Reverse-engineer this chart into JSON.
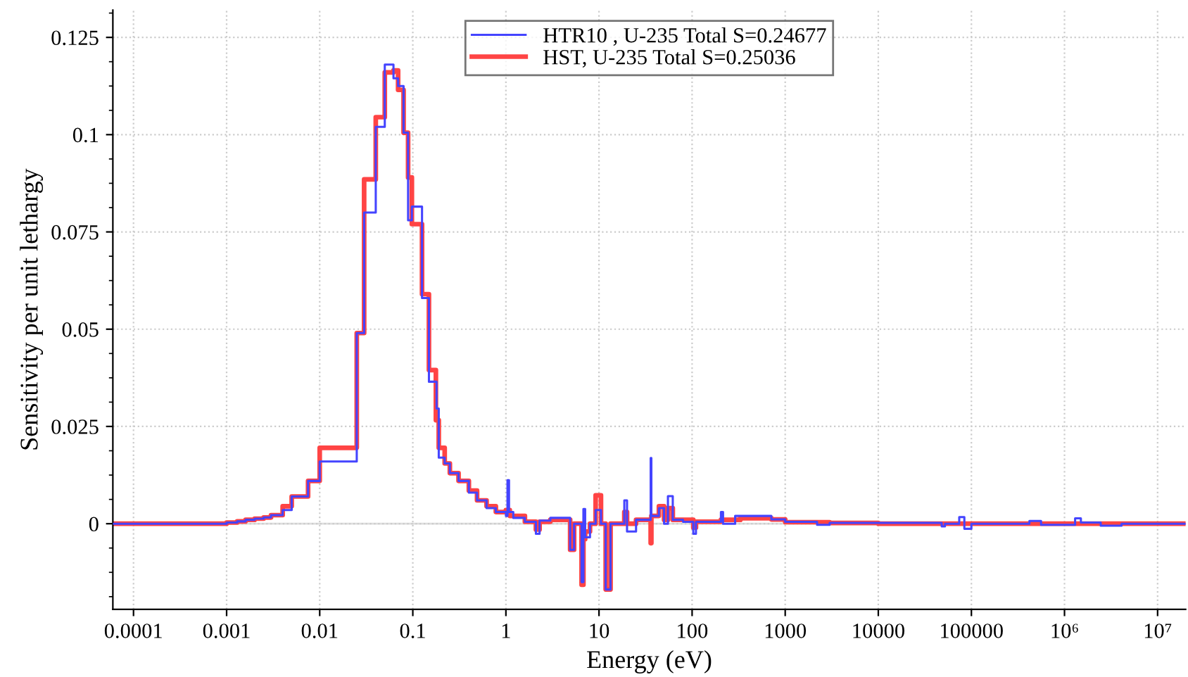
{
  "chart_data": {
    "type": "step",
    "xlabel": "Energy (eV)",
    "ylabel": "Sensitivity per unit lethargy",
    "log": "x",
    "grid": true,
    "legend": "top",
    "line_style": "solid",
    "marker": "none",
    "xlim": [
      6e-05,
      20000000.0
    ],
    "ylim": [
      -0.022,
      0.132
    ],
    "xticks": [
      0.0001,
      0.001,
      0.01,
      0.1,
      1,
      10,
      100,
      1000,
      10000,
      100000,
      {
        "value": 1000000,
        "label": "10⁶"
      },
      {
        "value": 10000000,
        "label": "10⁷"
      }
    ],
    "yticks": [
      0,
      0.025,
      0.05,
      0.075,
      0.1,
      0.125
    ],
    "series": [
      {
        "name": "HTR10 , U-235 Total S=0.24677",
        "color": "#4444ff",
        "x": [
          6e-05,
          0.001,
          0.0013,
          0.0016,
          0.002,
          0.0025,
          0.003,
          0.004,
          0.005,
          0.0075,
          0.01,
          0.025,
          0.03,
          0.04,
          0.05,
          0.062,
          0.0695,
          0.0796,
          0.089,
          0.0977,
          0.1256,
          0.149,
          0.18,
          0.19,
          0.22,
          0.25,
          0.31,
          0.4,
          0.49,
          0.62,
          0.78,
          1.0,
          1.04,
          1.08,
          1.2,
          1.6,
          2.1,
          2.3,
          3.0,
          4.9,
          5.4,
          6.5,
          6.8,
          7.1,
          8.0,
          9.2,
          10.5,
          11.8,
          13.3,
          18.7,
          20,
          25,
          35.9,
          36.5,
          44,
          50,
          55,
          62,
          80,
          103,
          110,
          204,
          215,
          290,
          710,
          1000,
          2200,
          3000,
          48000,
          52000,
          74000,
          84000,
          100000,
          420000,
          560000,
          1300000,
          1500000,
          2450000,
          4100000,
          20000000
        ],
        "values": [
          0,
          0.0003,
          0.0006,
          0.001,
          0.0013,
          0.0016,
          0.0022,
          0.0035,
          0.007,
          0.011,
          0.016,
          0.049,
          0.08,
          0.102,
          0.118,
          0.1145,
          0.1125,
          0.1005,
          0.078,
          0.0815,
          0.058,
          0.0365,
          0.0296,
          0.017,
          0.0155,
          0.013,
          0.011,
          0.008,
          0.006,
          0.004,
          0.003,
          0.002,
          0.0112,
          0.003,
          0.0015,
          0.0005,
          -0.0026,
          0.0008,
          0.0015,
          -0.0067,
          0,
          -0.015,
          0.0038,
          -0.0035,
          0,
          0.0035,
          0,
          -0.0169,
          0,
          0.006,
          -0.002,
          0.001,
          0.0169,
          0.002,
          0.004,
          0,
          0.0071,
          0.001,
          0.0005,
          -0.0026,
          0.0005,
          0.003,
          0,
          0.002,
          0.0011,
          0.0005,
          -0.0003,
          0.0002,
          -0.0007,
          0,
          0.0017,
          -0.0013,
          0,
          0.0007,
          -0.0003,
          0.0014,
          0.0003,
          -0.0005,
          0,
          0
        ]
      },
      {
        "name": "HST, U-235 Total S=0.25036",
        "color": "#ff4444",
        "x": [
          6e-05,
          0.001,
          0.0013,
          0.0016,
          0.002,
          0.0025,
          0.003,
          0.004,
          0.005,
          0.0075,
          0.01,
          0.025,
          0.03,
          0.04,
          0.05,
          0.062,
          0.0695,
          0.0796,
          0.089,
          0.0977,
          0.1256,
          0.149,
          0.177,
          0.19,
          0.22,
          0.25,
          0.31,
          0.4,
          0.49,
          0.62,
          0.78,
          1.0,
          1.1,
          1.6,
          2.1,
          2.3,
          3.0,
          4.9,
          5.4,
          6.5,
          6.8,
          7.1,
          8.0,
          9.2,
          10.5,
          11.8,
          13.3,
          18.7,
          20,
          25,
          35.9,
          36.5,
          44,
          50,
          55,
          62,
          103,
          110,
          204,
          330,
          710,
          1000,
          3000,
          10000,
          20000000
        ],
        "values": [
          0,
          0.0003,
          0.0006,
          0.001,
          0.0013,
          0.0016,
          0.0022,
          0.0045,
          0.007,
          0.011,
          0.0195,
          0.049,
          0.0885,
          0.1045,
          0.116,
          0.1165,
          0.1115,
          0.1005,
          0.089,
          0.077,
          0.059,
          0.0395,
          0.0266,
          0.0195,
          0.0155,
          0.013,
          0.011,
          0.0085,
          0.006,
          0.0045,
          0.003,
          0.0035,
          0.002,
          0.0005,
          -0.0015,
          0.0005,
          0.001,
          -0.0067,
          0,
          -0.0157,
          -0.004,
          -0.002,
          0,
          0.0073,
          0,
          -0.0169,
          0,
          0.003,
          0,
          0.001,
          -0.005,
          0.002,
          0.0045,
          0.001,
          0.004,
          0.001,
          -0.001,
          0.0005,
          0.001,
          0.0014,
          0.0011,
          0.0004,
          0.0002,
          0,
          0
        ]
      }
    ]
  }
}
